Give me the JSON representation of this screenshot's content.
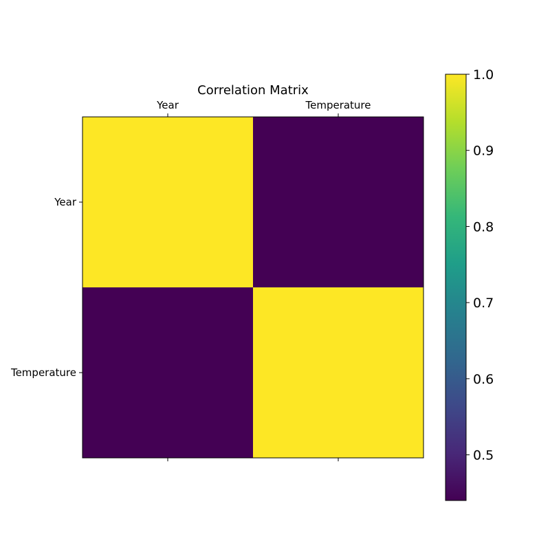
{
  "chart_data": {
    "type": "heatmap",
    "title": "Correlation Matrix",
    "x_categories": [
      "Year",
      "Temperature"
    ],
    "y_categories": [
      "Year",
      "Temperature"
    ],
    "values": [
      [
        1.0,
        0.44
      ],
      [
        0.44,
        1.0
      ]
    ],
    "colormap": "viridis",
    "colorbar": {
      "range": [
        0.44,
        1.0
      ],
      "ticks": [
        0.5,
        0.6,
        0.7,
        0.8,
        0.9,
        1.0
      ],
      "tick_labels": [
        "0.5",
        "0.6",
        "0.7",
        "0.8",
        "0.9",
        "1.0"
      ]
    },
    "x_tick_position": "top",
    "grid": false
  },
  "colors": {
    "viridis_stops": [
      "#440154",
      "#482878",
      "#3e4989",
      "#31688e",
      "#26828e",
      "#1f9e89",
      "#35b779",
      "#6ece58",
      "#b5de2b",
      "#fde725"
    ],
    "axis": "#000000",
    "background": "#ffffff"
  }
}
